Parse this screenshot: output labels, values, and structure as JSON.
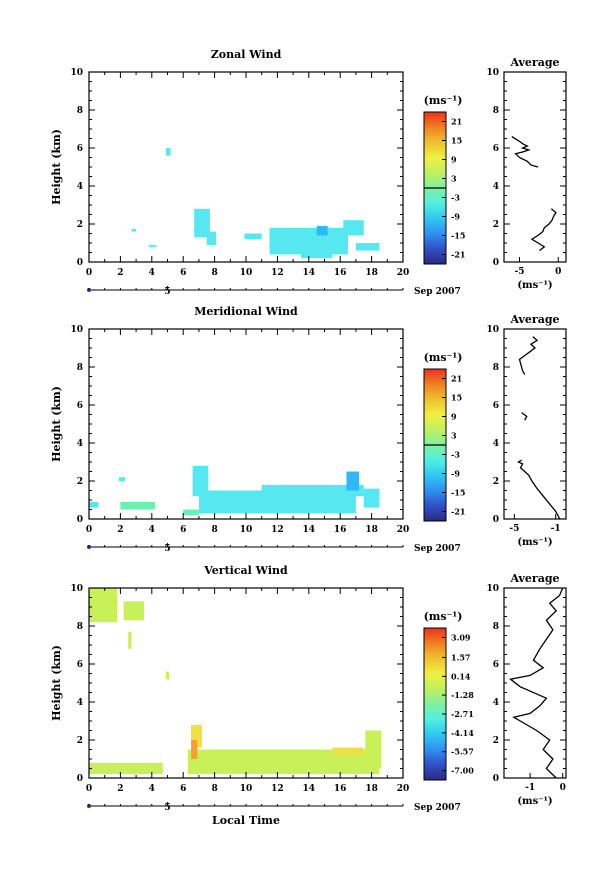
{
  "panels": [
    {
      "title": "Zonal Wind",
      "ylabel": "Height (km)",
      "xlabel": "",
      "date_label": "Sep 2007",
      "day_label": "5",
      "colorbar_unit": "(ms⁻¹)",
      "colorbar_ticks": [
        "21",
        "15",
        "9",
        "3",
        "-3",
        "-9",
        "-15",
        "-21"
      ],
      "avg_title": "Average",
      "avg_xlabel": "(ms⁻¹)",
      "avg_xticks": [
        "-5",
        "0"
      ]
    },
    {
      "title": "Meridional Wind",
      "ylabel": "Height (km)",
      "xlabel": "",
      "date_label": "Sep 2007",
      "day_label": "5",
      "colorbar_unit": "(ms⁻¹)",
      "colorbar_ticks": [
        "21",
        "15",
        "9",
        "3",
        "-3",
        "-9",
        "-15",
        "-21"
      ],
      "avg_title": "Average",
      "avg_xlabel": "(ms⁻¹)",
      "avg_xticks": [
        "-5",
        "-1"
      ]
    },
    {
      "title": "Vertical Wind",
      "ylabel": "Height (km)",
      "xlabel": "Local Time",
      "date_label": "Sep 2007",
      "day_label": "5",
      "colorbar_unit": "(ms⁻¹)",
      "colorbar_ticks": [
        "3.09",
        "1.57",
        "0.14",
        "-1.28",
        "-2.71",
        "-4.14",
        "-5.57",
        "-7.00"
      ],
      "avg_title": "Average",
      "avg_xlabel": "(ms⁻¹)",
      "avg_xticks": [
        "-1",
        "0"
      ]
    }
  ],
  "chart_data": [
    {
      "type": "heatmap",
      "title": "Zonal Wind",
      "xlabel": "",
      "ylabel": "Height (km)",
      "xlim": [
        0,
        20
      ],
      "ylim": [
        0,
        10
      ],
      "xticks": [
        0,
        2,
        4,
        6,
        8,
        10,
        12,
        14,
        16,
        18,
        20
      ],
      "yticks": [
        0,
        2,
        4,
        6,
        8,
        10
      ],
      "colorbar": {
        "min": -24,
        "max": 24,
        "ticks": [
          21,
          15,
          9,
          3,
          -3,
          -9,
          -15,
          -21
        ],
        "unit": "ms-1"
      },
      "blobs": [
        {
          "x": [
            2.7,
            3.0
          ],
          "y": [
            1.6,
            1.75
          ],
          "color": "#55e8f0"
        },
        {
          "x": [
            3.8,
            4.3
          ],
          "y": [
            0.8,
            0.9
          ],
          "color": "#55e8f0"
        },
        {
          "x": [
            4.9,
            5.2
          ],
          "y": [
            5.6,
            6.0
          ],
          "color": "#55e8f0"
        },
        {
          "x": [
            6.7,
            7.7
          ],
          "y": [
            1.3,
            2.8
          ],
          "color": "#55e8f0"
        },
        {
          "x": [
            7.5,
            8.1
          ],
          "y": [
            0.9,
            1.6
          ],
          "color": "#55e8f0"
        },
        {
          "x": [
            9.9,
            11.0
          ],
          "y": [
            1.2,
            1.5
          ],
          "color": "#55e8f0"
        },
        {
          "x": [
            11.5,
            16.5
          ],
          "y": [
            0.4,
            1.8
          ],
          "color": "#55e8f0"
        },
        {
          "x": [
            13.5,
            15.5
          ],
          "y": [
            0.2,
            0.5
          ],
          "color": "#55e8f0"
        },
        {
          "x": [
            16.2,
            17.5
          ],
          "y": [
            1.4,
            2.2
          ],
          "color": "#55e8f0"
        },
        {
          "x": [
            17.0,
            18.5
          ],
          "y": [
            0.6,
            1.0
          ],
          "color": "#55e8f0"
        },
        {
          "x": [
            14.5,
            15.2
          ],
          "y": [
            1.4,
            1.9
          ],
          "color": "#2fb8f5"
        }
      ],
      "average": {
        "x": [
          -2.4,
          -1.8,
          -2.6,
          -3.4,
          -2.6,
          -2.0,
          -1.8,
          -1.2,
          -0.8,
          -0.6,
          -0.3,
          -0.9,
          -2.6,
          -3.5,
          -4.0,
          -5.0,
          -5.5,
          -4.5,
          -3.8,
          -4.6,
          -4.0,
          -4.5,
          -5.2,
          -6.0
        ],
        "y": [
          0.6,
          0.8,
          1.0,
          1.2,
          1.4,
          1.6,
          1.8,
          2.0,
          2.2,
          2.4,
          2.6,
          2.8,
          5.0,
          5.1,
          5.3,
          5.5,
          5.7,
          5.8,
          5.9,
          6.0,
          6.1,
          6.2,
          6.4,
          6.6
        ],
        "xlim": [
          -7,
          1
        ]
      }
    },
    {
      "type": "heatmap",
      "title": "Meridional Wind",
      "xlabel": "",
      "ylabel": "Height (km)",
      "xlim": [
        0,
        20
      ],
      "ylim": [
        0,
        10
      ],
      "xticks": [
        0,
        2,
        4,
        6,
        8,
        10,
        12,
        14,
        16,
        18,
        20
      ],
      "yticks": [
        0,
        2,
        4,
        6,
        8,
        10
      ],
      "colorbar": {
        "min": -24,
        "max": 24,
        "ticks": [
          21,
          15,
          9,
          3,
          -3,
          -9,
          -15,
          -21
        ],
        "unit": "ms-1"
      },
      "blobs": [
        {
          "x": [
            0.0,
            0.6
          ],
          "y": [
            0.6,
            0.9
          ],
          "color": "#55e8f0"
        },
        {
          "x": [
            1.9,
            2.3
          ],
          "y": [
            2.0,
            2.2
          ],
          "color": "#55e8f0"
        },
        {
          "x": [
            2.0,
            4.2
          ],
          "y": [
            0.5,
            0.9
          ],
          "color": "#6cf0b0"
        },
        {
          "x": [
            6.6,
            7.6
          ],
          "y": [
            1.2,
            2.8
          ],
          "color": "#55e8f0"
        },
        {
          "x": [
            7.0,
            17.0
          ],
          "y": [
            0.3,
            1.5
          ],
          "color": "#55e8f0"
        },
        {
          "x": [
            11.0,
            17.5
          ],
          "y": [
            1.2,
            1.8
          ],
          "color": "#55e8f0"
        },
        {
          "x": [
            16.4,
            17.2
          ],
          "y": [
            1.5,
            2.5
          ],
          "color": "#2fb8f5"
        },
        {
          "x": [
            17.5,
            18.5
          ],
          "y": [
            0.6,
            1.6
          ],
          "color": "#55e8f0"
        },
        {
          "x": [
            6.0,
            7.0
          ],
          "y": [
            0.2,
            0.5
          ],
          "color": "#6cf0b0"
        }
      ],
      "average": {
        "x": [
          -0.6,
          -1.0,
          -1.6,
          -2.2,
          -2.8,
          -3.3,
          -3.6,
          -4.0,
          -4.4,
          -4.2,
          -4.6,
          -4.3,
          -4.0,
          -3.8,
          -4.3,
          -4.0,
          -4.2,
          -4.5,
          -4.0,
          -3.5,
          -3.0,
          -3.4,
          -2.8,
          -3.2
        ],
        "y": [
          0.0,
          0.4,
          0.8,
          1.2,
          1.6,
          2.0,
          2.3,
          2.5,
          2.7,
          2.9,
          3.0,
          3.1,
          5.2,
          5.4,
          5.6,
          7.6,
          7.8,
          8.4,
          8.6,
          8.8,
          9.0,
          9.2,
          9.4,
          9.6
        ],
        "xlim": [
          -6,
          0
        ]
      }
    },
    {
      "type": "heatmap",
      "title": "Vertical Wind",
      "xlabel": "Local Time",
      "ylabel": "Height (km)",
      "xlim": [
        0,
        20
      ],
      "ylim": [
        0,
        10
      ],
      "xticks": [
        0,
        2,
        4,
        6,
        8,
        10,
        12,
        14,
        16,
        18,
        20
      ],
      "yticks": [
        0,
        2,
        4,
        6,
        8,
        10
      ],
      "colorbar": {
        "min": -7.71,
        "max": 3.8,
        "ticks": [
          3.09,
          1.57,
          0.14,
          -1.28,
          -2.71,
          -4.14,
          -5.57,
          -7.0
        ],
        "unit": "ms-1"
      },
      "blobs": [
        {
          "x": [
            0.0,
            4.7
          ],
          "y": [
            0.2,
            0.8
          ],
          "color": "#c8f058"
        },
        {
          "x": [
            0.0,
            1.8
          ],
          "y": [
            8.2,
            10.0
          ],
          "color": "#c8f058"
        },
        {
          "x": [
            2.2,
            3.5
          ],
          "y": [
            8.3,
            9.3
          ],
          "color": "#c8f058"
        },
        {
          "x": [
            2.5,
            2.7
          ],
          "y": [
            6.8,
            7.7
          ],
          "color": "#c8f058"
        },
        {
          "x": [
            4.9,
            5.1
          ],
          "y": [
            5.2,
            5.6
          ],
          "color": "#c8f058"
        },
        {
          "x": [
            6.3,
            18.5
          ],
          "y": [
            0.2,
            1.5
          ],
          "color": "#c8f058"
        },
        {
          "x": [
            6.5,
            7.2
          ],
          "y": [
            1.6,
            2.8
          ],
          "color": "#f0e040"
        },
        {
          "x": [
            6.5,
            6.9
          ],
          "y": [
            1.0,
            2.0
          ],
          "color": "#f5a030"
        },
        {
          "x": [
            15.5,
            17.5
          ],
          "y": [
            1.2,
            1.6
          ],
          "color": "#f0e040"
        },
        {
          "x": [
            17.6,
            18.6
          ],
          "y": [
            0.5,
            2.5
          ],
          "color": "#c8f058"
        }
      ],
      "average": {
        "x": [
          -0.2,
          -0.5,
          -0.3,
          -0.6,
          -0.4,
          -0.8,
          -1.3,
          -1.5,
          -1.0,
          -0.7,
          -0.5,
          -1.3,
          -1.6,
          -1.0,
          -0.6,
          -0.9,
          -0.7,
          -0.5,
          -0.3,
          -0.5,
          -0.2,
          -0.4,
          -0.1,
          0.0
        ],
        "y": [
          0.0,
          0.5,
          1.0,
          1.5,
          2.0,
          2.5,
          3.0,
          3.2,
          3.4,
          3.8,
          4.2,
          4.8,
          5.2,
          5.4,
          5.8,
          6.2,
          6.8,
          7.3,
          7.8,
          8.3,
          8.8,
          9.2,
          9.6,
          10.0
        ],
        "xlim": [
          -1.8,
          0.1
        ]
      }
    }
  ],
  "colors": {
    "colorbar_stops": [
      "#2a2a80",
      "#3050c8",
      "#3090f0",
      "#30c8f0",
      "#50f0e0",
      "#80f0a0",
      "#c0f060",
      "#f0f040",
      "#f0c030",
      "#f08020",
      "#f03020"
    ]
  }
}
